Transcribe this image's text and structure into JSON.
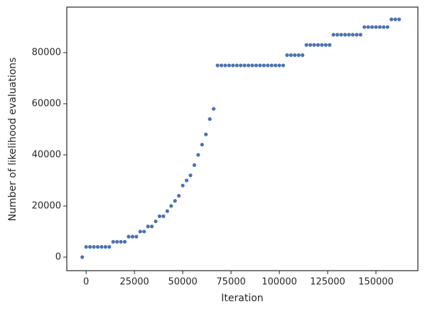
{
  "chart_data": {
    "type": "scatter",
    "xlabel": "Iteration",
    "ylabel": "Number of likelihood evaluations",
    "series": [
      {
        "color": "#4c72b0",
        "x": [
          -2000,
          0,
          2000,
          4000,
          6000,
          8000,
          10000,
          12000,
          14000,
          16000,
          18000,
          20000,
          22000,
          24000,
          26000,
          28000,
          30000,
          32000,
          34000,
          36000,
          38000,
          40000,
          42000,
          44000,
          46000,
          48000,
          50000,
          52000,
          54000,
          56000,
          58000,
          60000,
          62000,
          64000,
          66000,
          68000,
          70000,
          72000,
          74000,
          76000,
          78000,
          80000,
          82000,
          84000,
          86000,
          88000,
          90000,
          92000,
          94000,
          96000,
          98000,
          100000,
          102000,
          104000,
          106000,
          108000,
          110000,
          112000,
          114000,
          116000,
          118000,
          120000,
          122000,
          124000,
          126000,
          128000,
          130000,
          132000,
          134000,
          136000,
          138000,
          140000,
          142000,
          144000,
          146000,
          148000,
          150000,
          152000,
          154000,
          156000,
          158000,
          160000,
          162000
        ],
        "y": [
          0,
          4000,
          4000,
          4000,
          4000,
          4000,
          4000,
          4000,
          6000,
          6000,
          6000,
          6000,
          8000,
          8000,
          8000,
          10000,
          10000,
          12000,
          12000,
          14000,
          16000,
          16000,
          18000,
          20000,
          22000,
          24000,
          28000,
          30000,
          32000,
          36000,
          40000,
          44000,
          48000,
          54000,
          58000,
          75000,
          75000,
          75000,
          75000,
          75000,
          75000,
          75000,
          75000,
          75000,
          75000,
          75000,
          75000,
          75000,
          75000,
          75000,
          75000,
          75000,
          75000,
          79000,
          79000,
          79000,
          79000,
          79000,
          83000,
          83000,
          83000,
          83000,
          83000,
          83000,
          83000,
          87000,
          87000,
          87000,
          87000,
          87000,
          87000,
          87000,
          87000,
          90000,
          90000,
          90000,
          90000,
          90000,
          90000,
          90000,
          93000,
          93000,
          93000
        ]
      }
    ],
    "xlim": [
      -10000,
      171700
    ],
    "xticks": [
      0,
      25000,
      50000,
      75000,
      100000,
      125000,
      150000
    ],
    "ylim": [
      -5300,
      97800
    ],
    "yticks": [
      0,
      20000,
      40000,
      60000,
      80000
    ],
    "grid": false
  }
}
